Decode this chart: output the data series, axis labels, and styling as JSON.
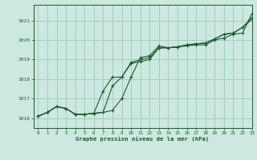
{
  "title": "Graphe pression niveau de la mer (hPa)",
  "bg_color": "#cce8e0",
  "plot_bg_color": "#cce8e0",
  "grid_color": "#99ccbb",
  "line_color": "#1a5c2a",
  "xlim": [
    -0.5,
    23
  ],
  "ylim": [
    1015.5,
    1021.8
  ],
  "yticks": [
    1016,
    1017,
    1018,
    1019,
    1020,
    1021
  ],
  "xticks": [
    0,
    1,
    2,
    3,
    4,
    5,
    6,
    7,
    8,
    9,
    10,
    11,
    12,
    13,
    14,
    15,
    16,
    17,
    18,
    19,
    20,
    21,
    22,
    23
  ],
  "line1_x": [
    0,
    1,
    2,
    3,
    4,
    5,
    6,
    7,
    8,
    9,
    10,
    11,
    12,
    13,
    14,
    15,
    16,
    17,
    18,
    19,
    20,
    21,
    22,
    23
  ],
  "line1_y": [
    1016.1,
    1016.3,
    1016.6,
    1016.5,
    1016.2,
    1016.2,
    1016.25,
    1016.3,
    1016.4,
    1017.0,
    1018.1,
    1019.1,
    1019.2,
    1019.7,
    1019.6,
    1019.65,
    1019.7,
    1019.75,
    1019.75,
    1020.0,
    1020.1,
    1020.3,
    1020.35,
    1021.35
  ],
  "line2_x": [
    0,
    1,
    2,
    3,
    4,
    5,
    6,
    7,
    8,
    9,
    10,
    11,
    12,
    13,
    14,
    15,
    16,
    17,
    18,
    19,
    20,
    21,
    22,
    23
  ],
  "line2_y": [
    1016.1,
    1016.3,
    1016.6,
    1016.5,
    1016.2,
    1016.2,
    1016.25,
    1017.4,
    1018.1,
    1018.1,
    1018.8,
    1018.9,
    1019.0,
    1019.6,
    1019.6,
    1019.65,
    1019.75,
    1019.8,
    1019.85,
    1020.05,
    1020.3,
    1020.35,
    1020.65,
    1021.15
  ],
  "line3_x": [
    0,
    1,
    2,
    3,
    4,
    5,
    6,
    7,
    8,
    9,
    10,
    11,
    12,
    13,
    14,
    15,
    16,
    17,
    18,
    19,
    20,
    21,
    22,
    23
  ],
  "line3_y": [
    1016.1,
    1016.3,
    1016.6,
    1016.5,
    1016.2,
    1016.2,
    1016.25,
    1016.3,
    1017.65,
    1018.1,
    1018.85,
    1019.0,
    1019.1,
    1019.6,
    1019.6,
    1019.65,
    1019.75,
    1019.8,
    1019.85,
    1020.05,
    1020.3,
    1020.35,
    1020.65,
    1021.05
  ]
}
